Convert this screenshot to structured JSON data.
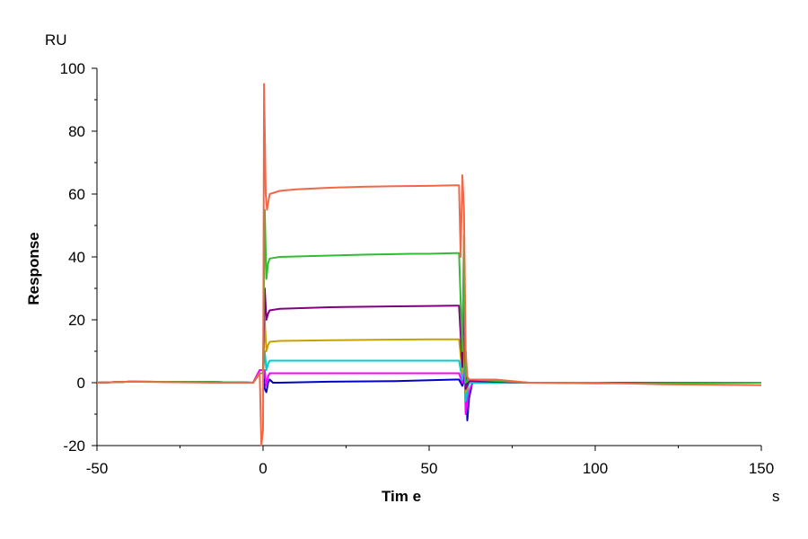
{
  "chart_data": {
    "type": "line",
    "title": "",
    "xlabel": "Tim e",
    "ylabel": "Response",
    "x_unit": "s",
    "y_unit": "RU",
    "xlim": [
      -50,
      150
    ],
    "ylim": [
      -20,
      100
    ],
    "x_ticks": [
      "-50",
      "0",
      "50",
      "100",
      "150"
    ],
    "y_ticks": [
      "-20",
      "0",
      "20",
      "40",
      "60",
      "80",
      "100"
    ],
    "grid": false,
    "legend": "none",
    "series": [
      {
        "color": "#0000cc",
        "points": [
          [
            -50,
            0
          ],
          [
            -40,
            0.3
          ],
          [
            -15,
            0.2
          ],
          [
            -3,
            0
          ],
          [
            -1,
            4
          ],
          [
            0,
            4
          ],
          [
            0.5,
            -2
          ],
          [
            1,
            -3
          ],
          [
            1.5,
            0
          ],
          [
            2,
            1
          ],
          [
            3,
            0
          ],
          [
            5,
            0
          ],
          [
            20,
            0.3
          ],
          [
            40,
            0.5
          ],
          [
            50,
            0.8
          ],
          [
            58,
            1
          ],
          [
            59,
            1
          ],
          [
            60,
            -1
          ],
          [
            60.5,
            1
          ],
          [
            61,
            10
          ],
          [
            61.5,
            -12
          ],
          [
            62,
            -5
          ],
          [
            63,
            0
          ],
          [
            65,
            0
          ],
          [
            80,
            0
          ],
          [
            100,
            0
          ],
          [
            130,
            0
          ],
          [
            150,
            0
          ]
        ]
      },
      {
        "color": "#ff00ff",
        "points": [
          [
            -50,
            0
          ],
          [
            -40,
            0.3
          ],
          [
            -15,
            0.2
          ],
          [
            -3,
            0
          ],
          [
            -1,
            4
          ],
          [
            0,
            4
          ],
          [
            0.5,
            4
          ],
          [
            1,
            -1
          ],
          [
            1.5,
            2
          ],
          [
            2,
            3
          ],
          [
            3,
            3
          ],
          [
            10,
            3
          ],
          [
            30,
            3
          ],
          [
            50,
            3
          ],
          [
            58,
            3
          ],
          [
            59,
            3
          ],
          [
            60,
            0
          ],
          [
            60.5,
            10
          ],
          [
            61,
            -10
          ],
          [
            62,
            -3
          ],
          [
            63,
            0
          ],
          [
            80,
            0
          ],
          [
            100,
            0
          ],
          [
            150,
            0
          ]
        ]
      },
      {
        "color": "#00cccc",
        "points": [
          [
            -50,
            0
          ],
          [
            -40,
            0.3
          ],
          [
            -15,
            0.2
          ],
          [
            -3,
            0
          ],
          [
            -1,
            3
          ],
          [
            0,
            3
          ],
          [
            0.5,
            10
          ],
          [
            1,
            4
          ],
          [
            1.5,
            6
          ],
          [
            2,
            7
          ],
          [
            5,
            7
          ],
          [
            20,
            7
          ],
          [
            40,
            7
          ],
          [
            50,
            7
          ],
          [
            58,
            7
          ],
          [
            59,
            7
          ],
          [
            60,
            1
          ],
          [
            60.5,
            13
          ],
          [
            61,
            -6
          ],
          [
            62,
            0
          ],
          [
            63,
            0
          ],
          [
            80,
            0
          ],
          [
            100,
            0
          ],
          [
            150,
            0
          ]
        ]
      },
      {
        "color": "#c8a000",
        "points": [
          [
            -50,
            0
          ],
          [
            -40,
            0.3
          ],
          [
            -15,
            0.2
          ],
          [
            -3,
            0
          ],
          [
            -1,
            3
          ],
          [
            0,
            3
          ],
          [
            0.5,
            20
          ],
          [
            1,
            10
          ],
          [
            1.5,
            12
          ],
          [
            2,
            13
          ],
          [
            5,
            13.3
          ],
          [
            20,
            13.5
          ],
          [
            40,
            13.7
          ],
          [
            50,
            13.8
          ],
          [
            58,
            13.8
          ],
          [
            59,
            13.8
          ],
          [
            60,
            3
          ],
          [
            60.5,
            14
          ],
          [
            61,
            -3
          ],
          [
            62,
            0.5
          ],
          [
            63,
            0.5
          ],
          [
            80,
            0
          ],
          [
            100,
            0
          ],
          [
            150,
            0
          ]
        ]
      },
      {
        "color": "#800080",
        "points": [
          [
            -50,
            0
          ],
          [
            -40,
            0.3
          ],
          [
            -15,
            0.2
          ],
          [
            -3,
            0
          ],
          [
            -1,
            3
          ],
          [
            0,
            3
          ],
          [
            0.5,
            30
          ],
          [
            1,
            20
          ],
          [
            1.5,
            22
          ],
          [
            2,
            23
          ],
          [
            5,
            23.5
          ],
          [
            20,
            24
          ],
          [
            40,
            24.3
          ],
          [
            50,
            24.4
          ],
          [
            58,
            24.5
          ],
          [
            59,
            24.5
          ],
          [
            60,
            5
          ],
          [
            60.5,
            32
          ],
          [
            61,
            -2
          ],
          [
            62,
            0.5
          ],
          [
            63,
            0.5
          ],
          [
            80,
            0
          ],
          [
            100,
            0
          ],
          [
            150,
            0
          ]
        ]
      },
      {
        "color": "#33bb33",
        "points": [
          [
            -50,
            0
          ],
          [
            -40,
            0.3
          ],
          [
            -15,
            0.2
          ],
          [
            -3,
            0
          ],
          [
            -1,
            3
          ],
          [
            0,
            3
          ],
          [
            0.5,
            55
          ],
          [
            1,
            33
          ],
          [
            1.5,
            38
          ],
          [
            2,
            39.5
          ],
          [
            5,
            40
          ],
          [
            15,
            40.3
          ],
          [
            30,
            40.7
          ],
          [
            45,
            41
          ],
          [
            50,
            41
          ],
          [
            58,
            41.2
          ],
          [
            59,
            41.2
          ],
          [
            60,
            10
          ],
          [
            60.5,
            47
          ],
          [
            61,
            0
          ],
          [
            62,
            1
          ],
          [
            63,
            1
          ],
          [
            80,
            0
          ],
          [
            100,
            -0.2
          ],
          [
            150,
            0
          ]
        ]
      },
      {
        "color": "#f06848",
        "points": [
          [
            -50,
            0
          ],
          [
            -40,
            0.3
          ],
          [
            -15,
            0
          ],
          [
            -3,
            0
          ],
          [
            -1,
            3
          ],
          [
            -0.5,
            -20
          ],
          [
            0,
            -15
          ],
          [
            0.3,
            95
          ],
          [
            0.8,
            60
          ],
          [
            1.2,
            55
          ],
          [
            2,
            60
          ],
          [
            5,
            61
          ],
          [
            10,
            61.5
          ],
          [
            20,
            62
          ],
          [
            30,
            62.3
          ],
          [
            40,
            62.5
          ],
          [
            50,
            62.6
          ],
          [
            58,
            62.8
          ],
          [
            59,
            62.8
          ],
          [
            59.5,
            40
          ],
          [
            60,
            66
          ],
          [
            60.5,
            55
          ],
          [
            61,
            10
          ],
          [
            61.5,
            2
          ],
          [
            62,
            1
          ],
          [
            64,
            1
          ],
          [
            70,
            1
          ],
          [
            80,
            0
          ],
          [
            100,
            0
          ],
          [
            120,
            -0.5
          ],
          [
            150,
            -0.8
          ]
        ]
      }
    ]
  }
}
